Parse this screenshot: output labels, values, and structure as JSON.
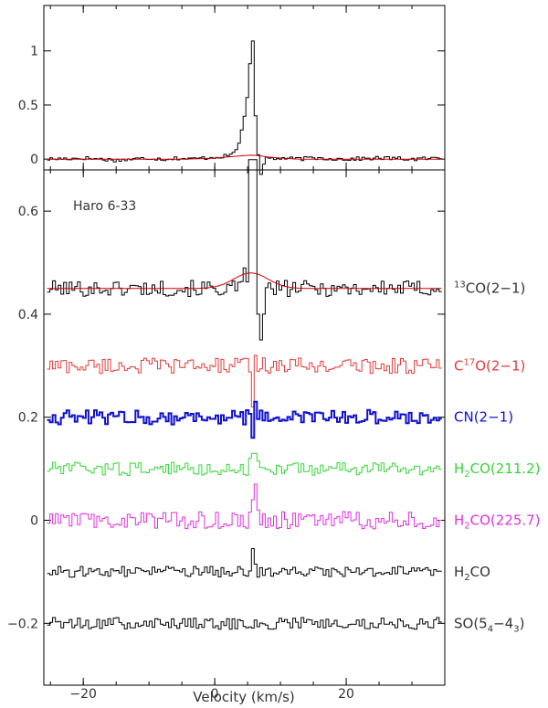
{
  "chart_data": [
    {
      "type": "line",
      "panel": "top",
      "xlabel": "",
      "ylabel": "",
      "xlim": [
        -26,
        35
      ],
      "ylim": [
        -0.1,
        1.42
      ],
      "xticks": [
        -20,
        0,
        20
      ],
      "yticks": [
        0,
        0.5,
        1
      ],
      "ytick_labels": [
        "0",
        "0.5",
        "1"
      ],
      "series": [
        {
          "color": "#000000",
          "style": "step",
          "x": [
            -25.5,
            -20,
            -15,
            -10,
            -8,
            -6,
            -4,
            -2,
            0,
            2,
            3,
            3.5,
            4,
            4.5,
            5,
            5.5,
            5.8,
            6.1,
            6.4,
            6.8,
            7.2,
            7.6,
            8,
            9,
            10,
            12,
            15,
            20,
            25,
            30,
            34.5
          ],
          "y": [
            0.0,
            0.01,
            -0.01,
            0.01,
            0.0,
            0.01,
            0.0,
            0.01,
            0.02,
            0.03,
            0.08,
            0.15,
            0.3,
            0.45,
            0.7,
            1.27,
            0.6,
            0.3,
            0.05,
            -0.15,
            -0.06,
            0.02,
            0.01,
            0.0,
            0.01,
            0.0,
            0.01,
            0.0,
            0.01,
            0.0,
            0.01
          ]
        },
        {
          "color": "#d40000",
          "style": "line",
          "x": [
            -25.5,
            -10,
            -5,
            -2,
            0,
            2,
            4,
            5,
            5.5,
            6,
            7,
            8,
            10,
            13,
            20,
            34.5
          ],
          "y": [
            0.0,
            0.0,
            0.0,
            0.005,
            0.01,
            0.02,
            0.03,
            0.035,
            0.036,
            0.035,
            0.03,
            0.02,
            0.01,
            0.0,
            0.0,
            0.0
          ]
        }
      ]
    },
    {
      "type": "line",
      "panel": "bottom",
      "title": "",
      "annotation": "Haro 6-33",
      "xlabel": "Velocity (km/s)",
      "ylabel": "",
      "xlim": [
        -26,
        35
      ],
      "ylim": [
        -0.32,
        0.68
      ],
      "xticks": [
        -20,
        0,
        20
      ],
      "xtick_labels": [
        "−20",
        "0",
        "20"
      ],
      "yticks": [
        -0.2,
        0,
        0.2,
        0.4,
        0.6
      ],
      "ytick_labels": [
        "−0.2",
        "0",
        "0.2",
        "0.4",
        "0.6"
      ],
      "series": [
        {
          "label": "CO(2−1)",
          "label_pre_sup": "13",
          "color": "#000000",
          "offset": 0.45,
          "noise": 0.012,
          "peaks": [
            [
              4.5,
              0.04
            ],
            [
              5.3,
              0.12
            ],
            [
              5.8,
              0.25
            ],
            [
              6.2,
              0.15
            ],
            [
              6.6,
              -0.05
            ],
            [
              6.9,
              -0.1
            ],
            [
              7.3,
              -0.05
            ]
          ]
        },
        {
          "label": "C¹⁷O(2−1)",
          "label_html": [
            "C",
            "17",
            "O(2−1)"
          ],
          "color": "#e23b3b",
          "offset": 0.3,
          "noise": 0.012,
          "peaks": [
            [
              5.6,
              -0.08
            ],
            [
              6.0,
              0.02
            ]
          ]
        },
        {
          "label": "CN(2−1)",
          "color": "#1010d0",
          "offset": 0.2,
          "noise": 0.011,
          "peaks": [
            [
              5.4,
              0.025
            ],
            [
              5.8,
              -0.04
            ],
            [
              6.2,
              0.03
            ]
          ],
          "thick": true
        },
        {
          "label": "H2CO(211.2)",
          "label_html": [
            "H",
            "2",
            "CO(211.2)"
          ],
          "color": "#35d635",
          "offset": 0.1,
          "noise": 0.01,
          "peaks": [
            [
              5.2,
              0.02
            ],
            [
              5.8,
              0.03
            ],
            [
              6.4,
              0.015
            ]
          ]
        },
        {
          "label": "H2CO(225.7)",
          "label_html": [
            "H",
            "2",
            "CO(225.7)"
          ],
          "color": "#e030e0",
          "offset": 0.0,
          "noise": 0.013,
          "peaks": [
            [
              5.6,
              0.04
            ],
            [
              6.0,
              0.07
            ],
            [
              6.4,
              0.02
            ]
          ]
        },
        {
          "label": "H2CO",
          "label_html": [
            "H",
            "2",
            "CO"
          ],
          "color": "#000000",
          "offset": -0.1,
          "noise": 0.008,
          "peaks": [
            [
              5.4,
              0.015
            ],
            [
              5.8,
              0.045
            ],
            [
              6.2,
              0.015
            ]
          ]
        },
        {
          "label": "SO(54−43)",
          "label_html": [
            "SO(5",
            "4",
            "−4",
            "3",
            ")"
          ],
          "color": "#000000",
          "offset": -0.2,
          "noise": 0.009,
          "peaks": []
        }
      ],
      "fit": {
        "color": "#d40000",
        "offset": 0.45,
        "center": 5.5,
        "amp": 0.03,
        "width": 2.6
      }
    }
  ]
}
